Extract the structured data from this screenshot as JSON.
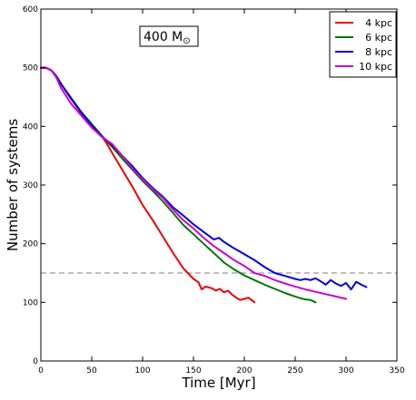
{
  "chart_data": {
    "type": "line",
    "xlabel": "Time [Myr]",
    "ylabel": "Number of systems",
    "xlim": [
      0,
      350
    ],
    "ylim": [
      0,
      600
    ],
    "xticks": [
      "0",
      "50",
      "100",
      "150",
      "200",
      "250",
      "300",
      "350"
    ],
    "yticks": [
      "0",
      "100",
      "200",
      "300",
      "400",
      "500",
      "600"
    ],
    "grid": false,
    "legend_position": "top-right",
    "annotation": {
      "text": "400 M",
      "subscript": "⊙"
    },
    "reference_line": {
      "y": 150,
      "style": "dashed",
      "color": "#aaaaaa"
    },
    "series": [
      {
        "name": "4 kpc",
        "color": "#ee0000",
        "points": [
          [
            0,
            500
          ],
          [
            5,
            500
          ],
          [
            10,
            496
          ],
          [
            15,
            486
          ],
          [
            20,
            472
          ],
          [
            30,
            446
          ],
          [
            40,
            422
          ],
          [
            50,
            402
          ],
          [
            60,
            383
          ],
          [
            65,
            370
          ],
          [
            70,
            355
          ],
          [
            80,
            326
          ],
          [
            90,
            297
          ],
          [
            100,
            266
          ],
          [
            110,
            240
          ],
          [
            120,
            212
          ],
          [
            130,
            184
          ],
          [
            140,
            158
          ],
          [
            150,
            140
          ],
          [
            155,
            134
          ],
          [
            158,
            122
          ],
          [
            162,
            127
          ],
          [
            168,
            124
          ],
          [
            172,
            120
          ],
          [
            176,
            123
          ],
          [
            180,
            117
          ],
          [
            184,
            120
          ],
          [
            188,
            113
          ],
          [
            192,
            108
          ],
          [
            196,
            104
          ],
          [
            200,
            106
          ],
          [
            204,
            108
          ],
          [
            207,
            104
          ],
          [
            210,
            100
          ]
        ]
      },
      {
        "name": "6 kpc",
        "color": "#007700",
        "points": [
          [
            0,
            500
          ],
          [
            5,
            500
          ],
          [
            10,
            496
          ],
          [
            15,
            486
          ],
          [
            20,
            472
          ],
          [
            30,
            448
          ],
          [
            40,
            424
          ],
          [
            50,
            404
          ],
          [
            60,
            384
          ],
          [
            70,
            365
          ],
          [
            80,
            345
          ],
          [
            90,
            326
          ],
          [
            100,
            307
          ],
          [
            110,
            290
          ],
          [
            120,
            272
          ],
          [
            130,
            252
          ],
          [
            140,
            232
          ],
          [
            150,
            216
          ],
          [
            160,
            200
          ],
          [
            170,
            184
          ],
          [
            180,
            168
          ],
          [
            190,
            156
          ],
          [
            200,
            146
          ],
          [
            210,
            138
          ],
          [
            220,
            130
          ],
          [
            230,
            123
          ],
          [
            240,
            116
          ],
          [
            250,
            110
          ],
          [
            255,
            107
          ],
          [
            260,
            105
          ],
          [
            265,
            104
          ],
          [
            270,
            100
          ]
        ]
      },
      {
        "name": "8 kpc",
        "color": "#0000dd",
        "points": [
          [
            0,
            500
          ],
          [
            5,
            500
          ],
          [
            10,
            496
          ],
          [
            15,
            486
          ],
          [
            20,
            472
          ],
          [
            30,
            447
          ],
          [
            40,
            423
          ],
          [
            50,
            402
          ],
          [
            60,
            383
          ],
          [
            70,
            368
          ],
          [
            80,
            350
          ],
          [
            90,
            332
          ],
          [
            100,
            312
          ],
          [
            110,
            295
          ],
          [
            120,
            280
          ],
          [
            130,
            262
          ],
          [
            140,
            248
          ],
          [
            150,
            233
          ],
          [
            160,
            220
          ],
          [
            170,
            207
          ],
          [
            175,
            210
          ],
          [
            180,
            203
          ],
          [
            190,
            192
          ],
          [
            200,
            182
          ],
          [
            210,
            172
          ],
          [
            220,
            160
          ],
          [
            230,
            150
          ],
          [
            240,
            145
          ],
          [
            250,
            140
          ],
          [
            255,
            138
          ],
          [
            260,
            140
          ],
          [
            265,
            138
          ],
          [
            270,
            141
          ],
          [
            275,
            136
          ],
          [
            280,
            130
          ],
          [
            285,
            138
          ],
          [
            290,
            132
          ],
          [
            295,
            128
          ],
          [
            300,
            133
          ],
          [
            305,
            122
          ],
          [
            310,
            135
          ],
          [
            315,
            130
          ],
          [
            320,
            126
          ]
        ]
      },
      {
        "name": "10 kpc",
        "color": "#cc00cc",
        "points": [
          [
            0,
            500
          ],
          [
            5,
            500
          ],
          [
            10,
            496
          ],
          [
            15,
            484
          ],
          [
            20,
            465
          ],
          [
            30,
            438
          ],
          [
            40,
            418
          ],
          [
            50,
            398
          ],
          [
            60,
            382
          ],
          [
            70,
            370
          ],
          [
            80,
            350
          ],
          [
            90,
            328
          ],
          [
            100,
            310
          ],
          [
            110,
            293
          ],
          [
            120,
            278
          ],
          [
            130,
            258
          ],
          [
            140,
            240
          ],
          [
            150,
            226
          ],
          [
            160,
            210
          ],
          [
            170,
            196
          ],
          [
            180,
            184
          ],
          [
            190,
            172
          ],
          [
            200,
            162
          ],
          [
            210,
            150
          ],
          [
            220,
            145
          ],
          [
            230,
            138
          ],
          [
            240,
            132
          ],
          [
            250,
            127
          ],
          [
            260,
            122
          ],
          [
            270,
            118
          ],
          [
            280,
            114
          ],
          [
            290,
            110
          ],
          [
            300,
            106
          ]
        ]
      }
    ]
  }
}
